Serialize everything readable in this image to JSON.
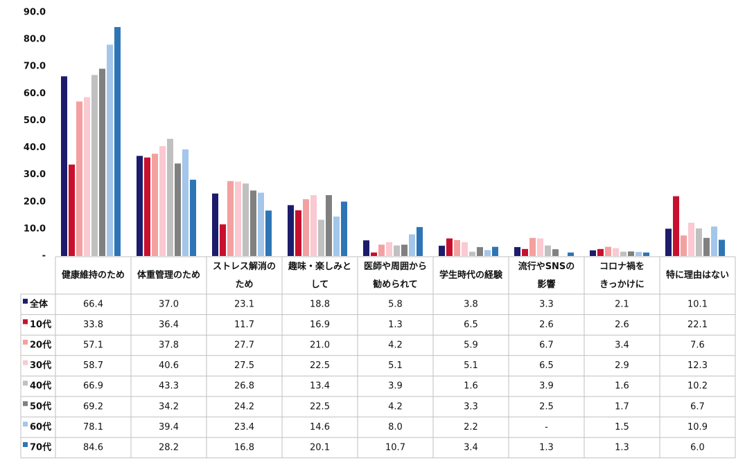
{
  "chart_data": {
    "type": "bar",
    "categories": [
      "健康維持のため",
      "体重管理のため",
      "ストレス解消の\nため",
      "趣味・楽しみと\nして",
      "医師や周囲から\n勧められて",
      "学生時代の経験",
      "流行やSNSの\n影響",
      "コロナ禍を\nきっかけに",
      "特に理由はない"
    ],
    "ylim": [
      0,
      90
    ],
    "yticks": [
      {
        "value": 0,
        "label": "-"
      },
      {
        "value": 10,
        "label": "10.0"
      },
      {
        "value": 20,
        "label": "20.0"
      },
      {
        "value": 30,
        "label": "30.0"
      },
      {
        "value": 40,
        "label": "40.0"
      },
      {
        "value": 50,
        "label": "50.0"
      },
      {
        "value": 60,
        "label": "60.0"
      },
      {
        "value": 70,
        "label": "70.0"
      },
      {
        "value": 80,
        "label": "80.0"
      },
      {
        "value": 90,
        "label": "90.0"
      }
    ],
    "series": [
      {
        "name": "全体",
        "color": "#1c1c6b",
        "values": [
          66.4,
          37.0,
          23.1,
          18.8,
          5.8,
          3.8,
          3.3,
          2.1,
          10.1
        ],
        "value_labels": [
          "66.4",
          "37.0",
          "23.1",
          "18.8",
          "5.8",
          "3.8",
          "3.3",
          "2.1",
          "10.1"
        ]
      },
      {
        "name": "10代",
        "color": "#c8102e",
        "values": [
          33.8,
          36.4,
          11.7,
          16.9,
          1.3,
          6.5,
          2.6,
          2.6,
          22.1
        ],
        "value_labels": [
          "33.8",
          "36.4",
          "11.7",
          "16.9",
          "1.3",
          "6.5",
          "2.6",
          "2.6",
          "22.1"
        ]
      },
      {
        "name": "20代",
        "color": "#f4a0a0",
        "values": [
          57.1,
          37.8,
          27.7,
          21.0,
          4.2,
          5.9,
          6.7,
          3.4,
          7.6
        ],
        "value_labels": [
          "57.1",
          "37.8",
          "27.7",
          "21.0",
          "4.2",
          "5.9",
          "6.7",
          "3.4",
          "7.6"
        ]
      },
      {
        "name": "30代",
        "color": "#fbc9d1",
        "values": [
          58.7,
          40.6,
          27.5,
          22.5,
          5.1,
          5.1,
          6.5,
          2.9,
          12.3
        ],
        "value_labels": [
          "58.7",
          "40.6",
          "27.5",
          "22.5",
          "5.1",
          "5.1",
          "6.5",
          "2.9",
          "12.3"
        ]
      },
      {
        "name": "40代",
        "color": "#c0c0c0",
        "values": [
          66.9,
          43.3,
          26.8,
          13.4,
          3.9,
          1.6,
          3.9,
          1.6,
          10.2
        ],
        "value_labels": [
          "66.9",
          "43.3",
          "26.8",
          "13.4",
          "3.9",
          "1.6",
          "3.9",
          "1.6",
          "10.2"
        ]
      },
      {
        "name": "50代",
        "color": "#808080",
        "values": [
          69.2,
          34.2,
          24.2,
          22.5,
          4.2,
          3.3,
          2.5,
          1.7,
          6.7
        ],
        "value_labels": [
          "69.2",
          "34.2",
          "24.2",
          "22.5",
          "4.2",
          "3.3",
          "2.5",
          "1.7",
          "6.7"
        ]
      },
      {
        "name": "60代",
        "color": "#a3c6ea",
        "values": [
          78.1,
          39.4,
          23.4,
          14.6,
          8.0,
          2.2,
          null,
          1.5,
          10.9
        ],
        "value_labels": [
          "78.1",
          "39.4",
          "23.4",
          "14.6",
          "8.0",
          "2.2",
          "-",
          "1.5",
          "10.9"
        ]
      },
      {
        "name": "70代",
        "color": "#2e75b6",
        "values": [
          84.6,
          28.2,
          16.8,
          20.1,
          10.7,
          3.4,
          1.3,
          1.3,
          6.0
        ],
        "value_labels": [
          "84.6",
          "28.2",
          "16.8",
          "20.1",
          "10.7",
          "3.4",
          "1.3",
          "1.3",
          "6.0"
        ]
      }
    ]
  }
}
